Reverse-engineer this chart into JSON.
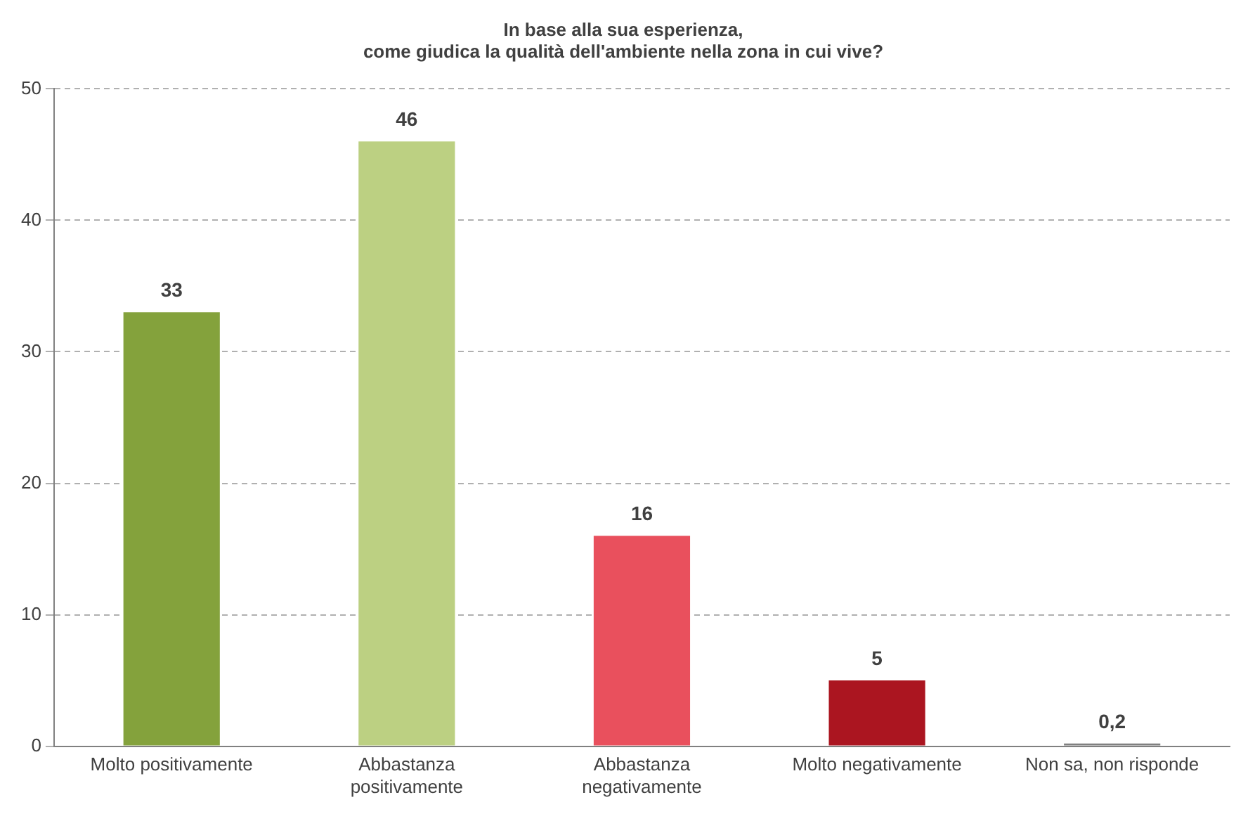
{
  "chart_data": {
    "type": "bar",
    "title": "In base alla sua esperienza,\ncome giudica la qualità dell'ambiente nella zona in cui vive?",
    "categories": [
      "Molto positivamente",
      "Abbastanza positivamente",
      "Abbastanza negativamente",
      "Molto negativamente",
      "Non sa, non risponde"
    ],
    "values": [
      33,
      46,
      16,
      5,
      0.2
    ],
    "value_labels": [
      "33",
      "46",
      "16",
      "5",
      "0,2"
    ],
    "colors": [
      "#84a23c",
      "#bcd082",
      "#e9505d",
      "#ab1520",
      "#808080"
    ],
    "ylim": [
      0,
      50
    ],
    "yticks": [
      0,
      10,
      20,
      30,
      40,
      50
    ],
    "grid": "y",
    "legend": false
  }
}
